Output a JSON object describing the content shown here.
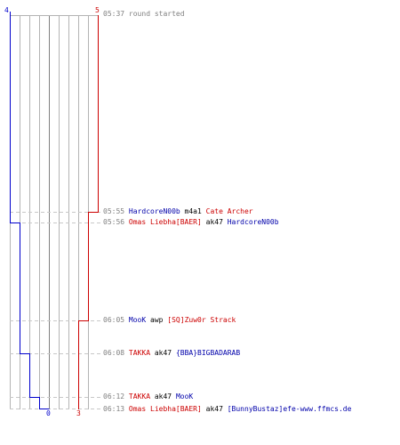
{
  "graph": {
    "blue_start_count": "4",
    "red_start_count": "5",
    "blue_end_count": "0",
    "red_end_count": "3",
    "colors": {
      "blue": "#0000cc",
      "red": "#cc0000",
      "grid": "#b4b4b4",
      "center": "#808080",
      "dashed": "#c8c8c8"
    }
  },
  "events": [
    {
      "time": "05:37",
      "message": "round started"
    },
    {
      "time": "05:55",
      "killer": "HardcoreN00b",
      "killer_team": "blue",
      "weapon": "m4a1",
      "victim": "Cate Archer",
      "victim_team": "red"
    },
    {
      "time": "05:56",
      "killer": "Omas Liebha[BAER]",
      "killer_team": "red",
      "weapon": "ak47",
      "victim": "HardcoreN00b",
      "victim_team": "blue"
    },
    {
      "time": "06:05",
      "killer": "MooK",
      "killer_team": "blue",
      "weapon": "awp",
      "victim": "[SQ]Zuw0r Strack",
      "victim_team": "red"
    },
    {
      "time": "06:08",
      "killer": "TAKKA",
      "killer_team": "red",
      "weapon": "ak47",
      "victim": "{BBA}BIGBADARAB",
      "victim_team": "blue"
    },
    {
      "time": "06:12",
      "killer": "TAKKA",
      "killer_team": "red",
      "weapon": "ak47",
      "victim": "MooK",
      "victim_team": "blue"
    },
    {
      "time": "06:13",
      "killer": "Omas Liebha[BAER]",
      "killer_team": "red",
      "weapon": "ak47",
      "victim": "[BunnyBustaz]efe-www.ffmcs.de",
      "victim_team": "blue"
    }
  ]
}
